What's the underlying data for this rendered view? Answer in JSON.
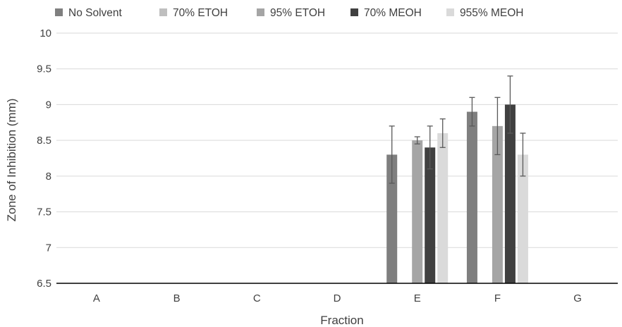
{
  "chart_data": {
    "type": "bar",
    "title": "",
    "xlabel": "Fraction",
    "ylabel": "Zone of Inhibition (mm)",
    "ylim": [
      6.5,
      10
    ],
    "yticks": [
      6.5,
      7,
      7.5,
      8,
      8.5,
      9,
      9.5,
      10
    ],
    "ytick_labels": [
      "6.5",
      "7",
      "7.5",
      "8",
      "8.5",
      "9",
      "9.5",
      "10"
    ],
    "grid": true,
    "legend_position": "top",
    "categories": [
      "A",
      "B",
      "C",
      "D",
      "E",
      "F",
      "G"
    ],
    "series": [
      {
        "name": "No Solvent",
        "color": "#7f7f7f",
        "values": [
          6.5,
          6.5,
          6.5,
          6.5,
          8.3,
          8.9,
          6.5
        ],
        "errors": [
          0,
          0,
          0,
          0,
          0.4,
          0.2,
          0
        ]
      },
      {
        "name": "70% ETOH",
        "color": "#bfbfbf",
        "values": [
          6.5,
          6.5,
          6.5,
          6.5,
          6.5,
          6.5,
          6.5
        ],
        "errors": [
          0,
          0,
          0,
          0,
          0,
          0,
          0
        ]
      },
      {
        "name": "95% ETOH",
        "color": "#a5a5a5",
        "values": [
          6.5,
          6.5,
          6.5,
          6.5,
          8.5,
          8.7,
          6.5
        ],
        "errors": [
          0,
          0,
          0,
          0,
          0.05,
          0.4,
          0
        ]
      },
      {
        "name": "70% MEOH",
        "color": "#404040",
        "values": [
          6.5,
          6.5,
          6.5,
          6.5,
          8.4,
          9.0,
          6.5
        ],
        "errors": [
          0,
          0,
          0,
          0,
          0.3,
          0.4,
          0
        ]
      },
      {
        "name": "955% MEOH",
        "color": "#dadada",
        "values": [
          6.5,
          6.5,
          6.5,
          6.5,
          8.6,
          8.3,
          6.5
        ],
        "errors": [
          0,
          0,
          0,
          0,
          0.2,
          0.3,
          0
        ]
      }
    ],
    "colors": {
      "grid": "#d9d9d9",
      "axis": "#000000",
      "text": "#404040",
      "errorbar": "#595959"
    }
  }
}
